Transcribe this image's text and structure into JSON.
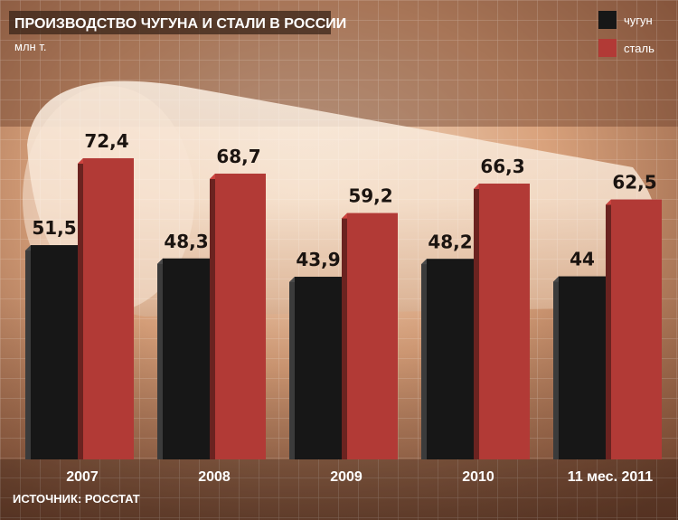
{
  "chart_data": {
    "type": "bar",
    "title": "ПРОИЗВОДСТВО ЧУГУНА И СТАЛИ В РОССИИ",
    "unit": "млн т.",
    "categories": [
      "2007",
      "2008",
      "2009",
      "2010",
      "11 мес. 2011"
    ],
    "series": [
      {
        "name": "чугун",
        "values": [
          51.5,
          48.3,
          43.9,
          48.2,
          44
        ],
        "labels": [
          "51,5",
          "48,3",
          "43,9",
          "48,2",
          "44"
        ],
        "color": "#171717"
      },
      {
        "name": "сталь",
        "values": [
          72.4,
          68.7,
          59.2,
          66.3,
          62.5
        ],
        "labels": [
          "72,4",
          "68,7",
          "59,2",
          "66,3",
          "62,5"
        ],
        "color": "#b23a36"
      }
    ],
    "legend": "top-right",
    "grid": true,
    "source": "ИСТОЧНИК: РОССТАТ"
  }
}
